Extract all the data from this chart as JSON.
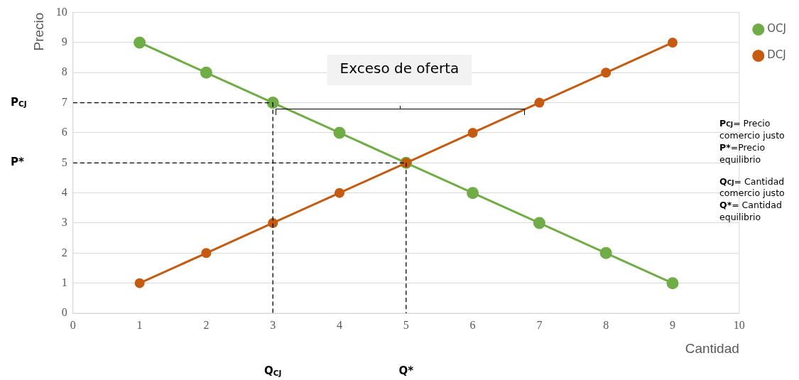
{
  "chart_data": {
    "type": "line",
    "xlabel": "Cantidad",
    "ylabel": "Precio",
    "x": [
      1,
      2,
      3,
      4,
      5,
      6,
      7,
      8,
      9
    ],
    "xlim": [
      0,
      10
    ],
    "xticks": [
      0,
      1,
      2,
      3,
      4,
      5,
      6,
      7,
      8,
      9,
      10
    ],
    "ylim": [
      0,
      10
    ],
    "yticks": [
      0,
      1,
      2,
      3,
      4,
      5,
      6,
      7,
      8,
      9,
      10
    ],
    "grid": "y",
    "legend": "top right",
    "marker": "circle",
    "series": [
      {
        "name": "OCJ",
        "color": "#70ad47",
        "values": [
          9,
          8,
          7,
          6,
          5,
          4,
          3,
          2,
          1
        ],
        "line_style": "solid"
      },
      {
        "name": "DCJ",
        "color": "#c55a11",
        "values": [
          1,
          2,
          3,
          4,
          5,
          6,
          7,
          8,
          9
        ],
        "line_style": "solid"
      },
      {
        "color": "#000000",
        "x": [
          0,
          3
        ],
        "values": [
          7,
          7
        ],
        "marker": "none",
        "line_style": "dashed"
      },
      {
        "color": "#000000",
        "x": [
          3,
          3
        ],
        "values": [
          7,
          0
        ],
        "marker": "none",
        "line_style": "dashed"
      },
      {
        "color": "#000000",
        "x": [
          0,
          5
        ],
        "values": [
          5,
          5
        ],
        "marker": "none",
        "line_style": "dashed"
      },
      {
        "color": "#000000",
        "x": [
          5,
          5
        ],
        "values": [
          5,
          0
        ],
        "marker": "none",
        "line_style": "dashed"
      }
    ],
    "annotations": [
      "Exceso de oferta",
      "P$_{CJ}$",
      "P*",
      "Q$_{CJ}$",
      "Q*",
      "P$_{CJ}$= Precio comercio justo",
      "P*=Precio equilibrio",
      "Q$_{CJ}$= Cantidad comercio justo",
      "Q*= Cantidad equilibrio"
    ]
  }
}
